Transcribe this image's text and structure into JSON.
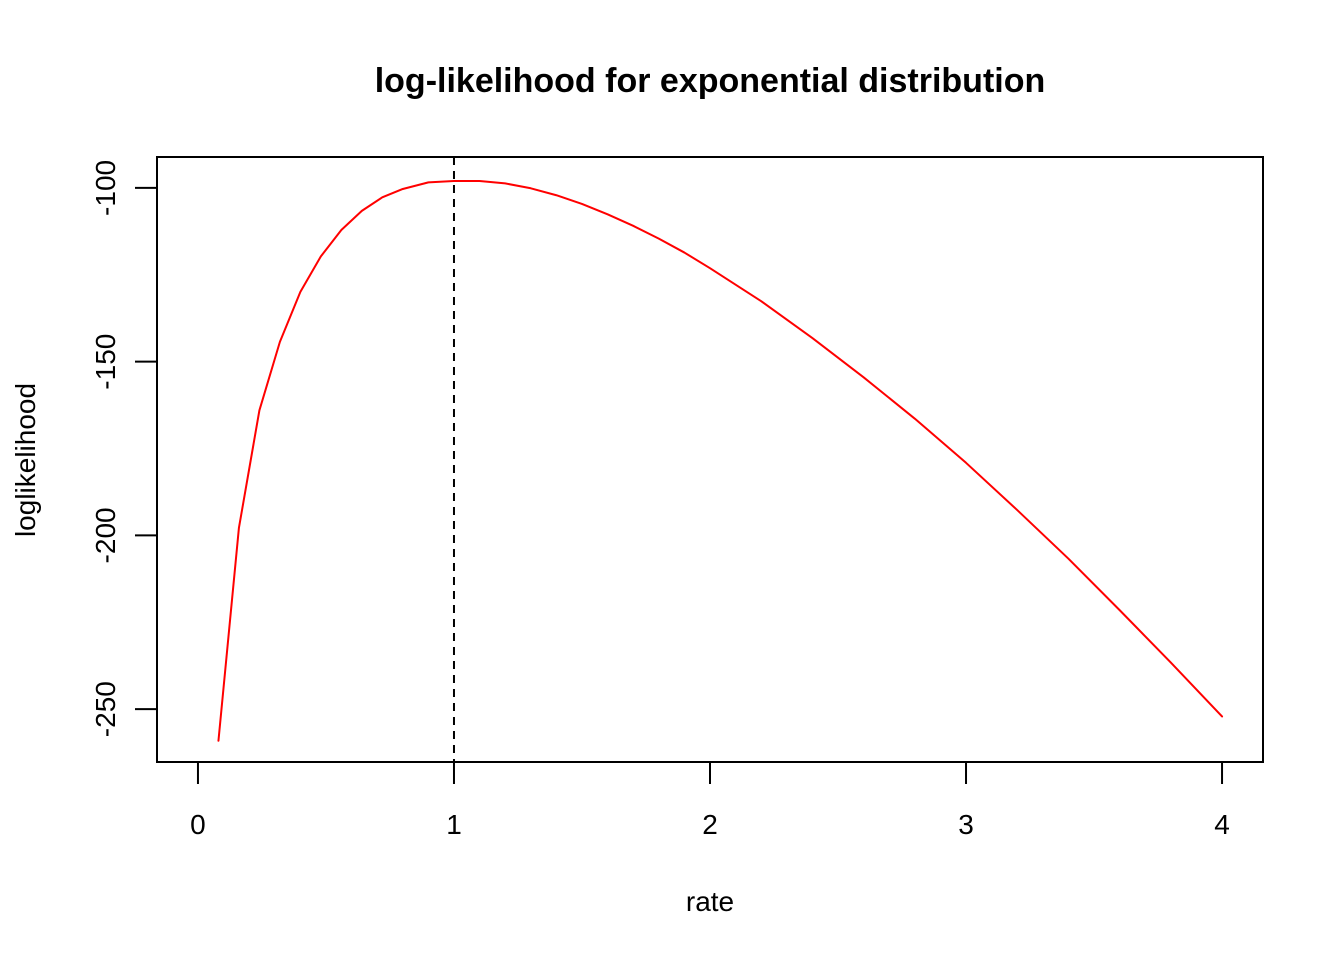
{
  "chart_data": {
    "type": "line",
    "title": "log-likelihood for exponential distribution",
    "xlabel": "rate",
    "ylabel": "loglikelihood",
    "xlim": [
      -0.16,
      4.16
    ],
    "ylim": [
      -265.2,
      -91.1
    ],
    "x_ticks": [
      0,
      1,
      2,
      3,
      4
    ],
    "x_tick_labels": [
      "0",
      "1",
      "2",
      "3",
      "4"
    ],
    "y_ticks": [
      -100,
      -150,
      -200,
      -250
    ],
    "y_tick_labels": [
      "-100",
      "-150",
      "-200",
      "-250"
    ],
    "grid": false,
    "legend": "none",
    "series": [
      {
        "color": "#ff0000",
        "x": [
          0.08,
          0.16,
          0.24,
          0.32,
          0.4,
          0.48,
          0.56,
          0.64,
          0.72,
          0.8,
          0.9,
          1.0,
          1.1,
          1.2,
          1.3,
          1.4,
          1.5,
          1.6,
          1.7,
          1.8,
          1.9,
          2.0,
          2.2,
          2.4,
          2.6,
          2.8,
          3.0,
          3.2,
          3.4,
          3.6,
          3.8,
          4.0
        ],
        "y": [
          -259.1,
          -197.8,
          -164.0,
          -144.3,
          -129.9,
          -119.7,
          -112.1,
          -106.6,
          -102.7,
          -100.3,
          -98.4,
          -98.0,
          -98.0,
          -98.7,
          -100.1,
          -102.1,
          -104.6,
          -107.6,
          -110.9,
          -114.6,
          -118.6,
          -123.1,
          -132.6,
          -143.2,
          -154.5,
          -166.4,
          -179.1,
          -192.7,
          -206.7,
          -221.5,
          -236.6,
          -252.1
        ]
      }
    ],
    "reference_lines": [
      {
        "orientation": "vertical",
        "x": 1.0,
        "style": "dashed",
        "color": "#000000"
      }
    ]
  }
}
